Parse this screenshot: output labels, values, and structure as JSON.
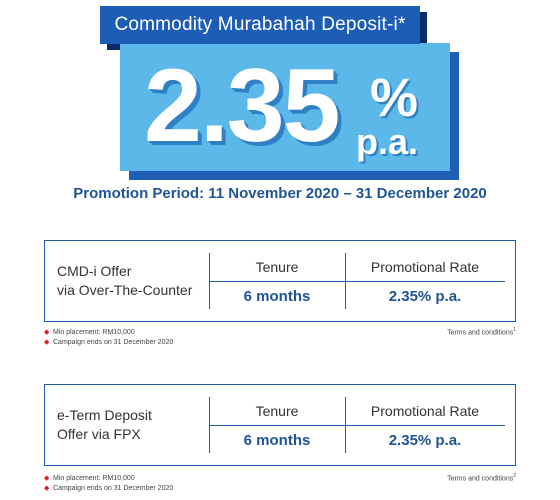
{
  "hero": {
    "title": "Commodity Murabahah Deposit-i*",
    "rate": "2.35",
    "percent_sign": "%",
    "pa": "p.a.",
    "promotion": "Promotion Period: 11 November 2020 – 31 December 2020"
  },
  "offers": [
    {
      "line1": "CMD-i Offer",
      "line2": "via Over-The-Counter",
      "tenure_header": "Tenure",
      "rate_header": "Promotional Rate",
      "tenure": "6 months",
      "rate": "2.35% p.a.",
      "notes": [
        "Min placement: RM10,000",
        "Campaign ends on 31 December 2020"
      ],
      "terms": "Terms and conditions",
      "terms_sup": "1"
    },
    {
      "line1": "e-Term Deposit",
      "line2": "Offer via FPX",
      "tenure_header": "Tenure",
      "rate_header": "Promotional Rate",
      "tenure": "6 months",
      "rate": "2.35% p.a.",
      "notes": [
        "Min placement: RM10,000",
        "Campaign ends on 31 December 2020"
      ],
      "terms": "Terms and conditions",
      "terms_sup": "2"
    }
  ],
  "colors": {
    "title_bg": "#1e5db6",
    "rate_bg": "#5bb8e8",
    "accent_text": "#1f5595",
    "bullet": "#d4202a"
  }
}
